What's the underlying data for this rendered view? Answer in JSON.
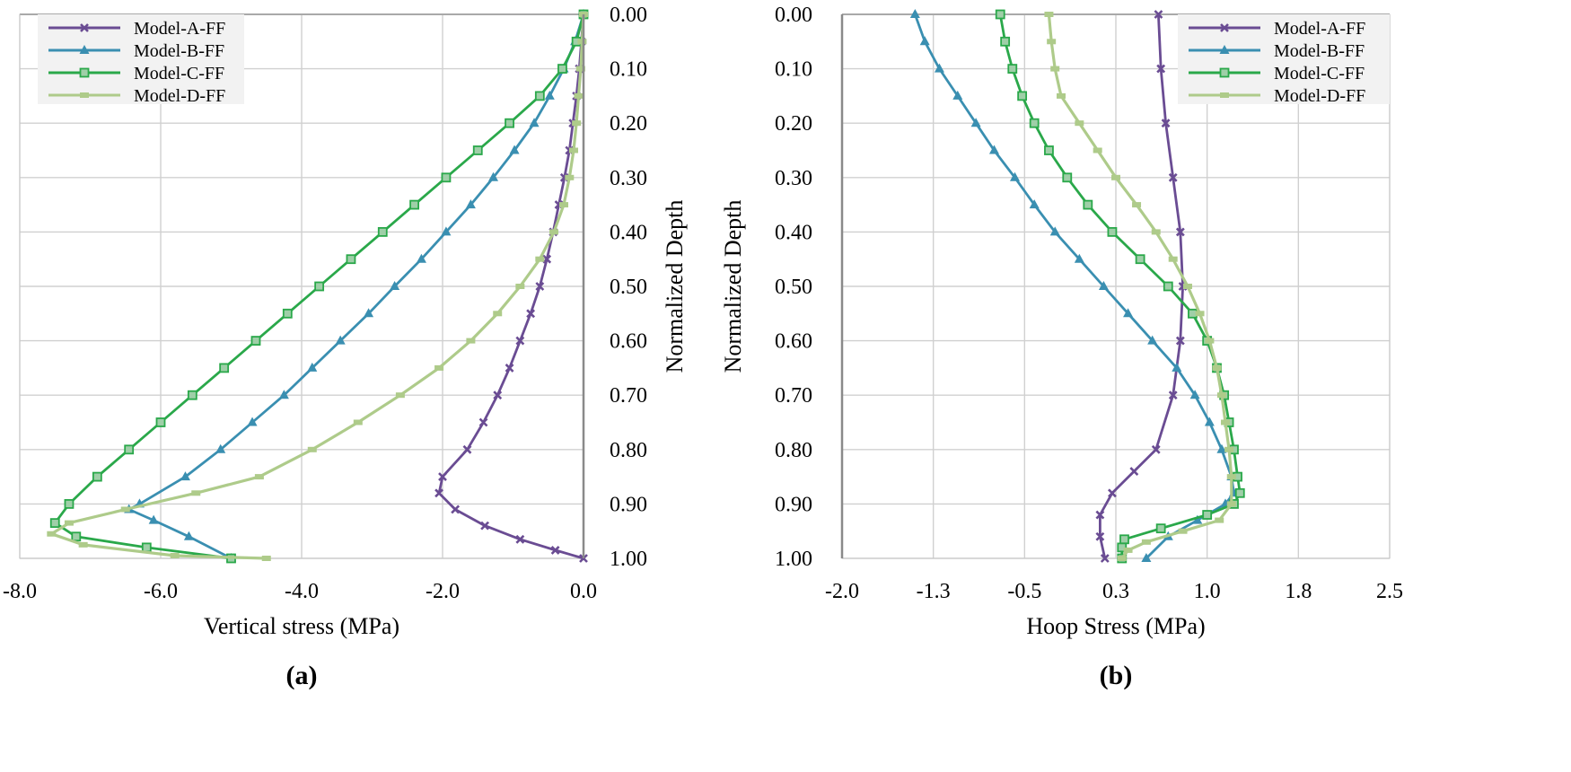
{
  "chart_data": [
    {
      "type": "line",
      "panel_label": "(a)",
      "xlabel": "Vertical stress (MPa)",
      "ylabel": "Normalized Depth",
      "xlim": [
        -8.0,
        0.0
      ],
      "ylim": [
        0.0,
        1.0
      ],
      "y_inverted": true,
      "x_ticks": [
        "-8.0",
        "-6.0",
        "-4.0",
        "-2.0",
        "0.0"
      ],
      "x_tick_values": [
        -8.0,
        -6.0,
        -4.0,
        -2.0,
        0.0
      ],
      "y_ticks": [
        "0.00",
        "0.10",
        "0.20",
        "0.30",
        "0.40",
        "0.50",
        "0.60",
        "0.70",
        "0.80",
        "0.90",
        "1.00"
      ],
      "y_tick_values": [
        0.0,
        0.1,
        0.2,
        0.3,
        0.4,
        0.5,
        0.6,
        0.7,
        0.8,
        0.9,
        1.0
      ],
      "y_axis_side": "right",
      "legend_position": "top-left",
      "grid": true,
      "series": [
        {
          "name": "Model-A-FF",
          "color": "#6a4c93",
          "marker": "x",
          "points": [
            [
              0.0,
              0.0
            ],
            [
              -0.03,
              0.05
            ],
            [
              -0.06,
              0.1
            ],
            [
              -0.1,
              0.15
            ],
            [
              -0.15,
              0.2
            ],
            [
              -0.2,
              0.25
            ],
            [
              -0.27,
              0.3
            ],
            [
              -0.35,
              0.35
            ],
            [
              -0.43,
              0.4
            ],
            [
              -0.52,
              0.45
            ],
            [
              -0.62,
              0.5
            ],
            [
              -0.75,
              0.55
            ],
            [
              -0.9,
              0.6
            ],
            [
              -1.05,
              0.65
            ],
            [
              -1.22,
              0.7
            ],
            [
              -1.42,
              0.75
            ],
            [
              -1.65,
              0.8
            ],
            [
              -2.0,
              0.85
            ],
            [
              -2.05,
              0.88
            ],
            [
              -1.82,
              0.91
            ],
            [
              -1.4,
              0.94
            ],
            [
              -0.9,
              0.965
            ],
            [
              -0.4,
              0.985
            ],
            [
              0.0,
              1.0
            ]
          ]
        },
        {
          "name": "Model-B-FF",
          "color": "#3a8fb1",
          "marker": "triangle",
          "points": [
            [
              0.0,
              0.0
            ],
            [
              -0.12,
              0.05
            ],
            [
              -0.28,
              0.1
            ],
            [
              -0.48,
              0.15
            ],
            [
              -0.7,
              0.2
            ],
            [
              -0.98,
              0.25
            ],
            [
              -1.28,
              0.3
            ],
            [
              -1.6,
              0.35
            ],
            [
              -1.95,
              0.4
            ],
            [
              -2.3,
              0.45
            ],
            [
              -2.68,
              0.5
            ],
            [
              -3.05,
              0.55
            ],
            [
              -3.45,
              0.6
            ],
            [
              -3.85,
              0.65
            ],
            [
              -4.25,
              0.7
            ],
            [
              -4.7,
              0.75
            ],
            [
              -5.15,
              0.8
            ],
            [
              -5.65,
              0.85
            ],
            [
              -6.3,
              0.9
            ],
            [
              -6.45,
              0.91
            ],
            [
              -6.1,
              0.93
            ],
            [
              -5.6,
              0.96
            ],
            [
              -5.0,
              1.0
            ]
          ]
        },
        {
          "name": "Model-C-FF",
          "color": "#2aa84a",
          "marker": "square",
          "points": [
            [
              0.0,
              0.0
            ],
            [
              -0.1,
              0.05
            ],
            [
              -0.3,
              0.1
            ],
            [
              -0.62,
              0.15
            ],
            [
              -1.05,
              0.2
            ],
            [
              -1.5,
              0.25
            ],
            [
              -1.95,
              0.3
            ],
            [
              -2.4,
              0.35
            ],
            [
              -2.85,
              0.4
            ],
            [
              -3.3,
              0.45
            ],
            [
              -3.75,
              0.5
            ],
            [
              -4.2,
              0.55
            ],
            [
              -4.65,
              0.6
            ],
            [
              -5.1,
              0.65
            ],
            [
              -5.55,
              0.7
            ],
            [
              -6.0,
              0.75
            ],
            [
              -6.45,
              0.8
            ],
            [
              -6.9,
              0.85
            ],
            [
              -7.3,
              0.9
            ],
            [
              -7.5,
              0.935
            ],
            [
              -7.2,
              0.96
            ],
            [
              -6.2,
              0.98
            ],
            [
              -5.0,
              1.0
            ]
          ]
        },
        {
          "name": "Model-D-FF",
          "color": "#aecb8a",
          "marker": "dash",
          "points": [
            [
              0.0,
              0.0
            ],
            [
              -0.02,
              0.05
            ],
            [
              -0.04,
              0.1
            ],
            [
              -0.07,
              0.15
            ],
            [
              -0.1,
              0.2
            ],
            [
              -0.14,
              0.25
            ],
            [
              -0.2,
              0.3
            ],
            [
              -0.28,
              0.35
            ],
            [
              -0.42,
              0.4
            ],
            [
              -0.62,
              0.45
            ],
            [
              -0.9,
              0.5
            ],
            [
              -1.22,
              0.55
            ],
            [
              -1.6,
              0.6
            ],
            [
              -2.05,
              0.65
            ],
            [
              -2.6,
              0.7
            ],
            [
              -3.2,
              0.75
            ],
            [
              -3.85,
              0.8
            ],
            [
              -4.6,
              0.85
            ],
            [
              -5.5,
              0.88
            ],
            [
              -6.5,
              0.91
            ],
            [
              -7.3,
              0.935
            ],
            [
              -7.55,
              0.955
            ],
            [
              -7.1,
              0.975
            ],
            [
              -5.8,
              0.995
            ],
            [
              -4.5,
              1.0
            ]
          ]
        }
      ]
    },
    {
      "type": "line",
      "panel_label": "(b)",
      "xlabel": "Hoop Stress (MPa)",
      "ylabel": "Normalized Depth",
      "xlim": [
        -2.0,
        2.5
      ],
      "ylim": [
        0.0,
        1.0
      ],
      "y_inverted": true,
      "x_ticks": [
        "-2.0",
        "-1.3",
        "-0.5",
        "0.3",
        "1.0",
        "1.8",
        "2.5"
      ],
      "x_tick_values": [
        -2.0,
        -1.25,
        -0.5,
        0.25,
        1.0,
        1.75,
        2.5
      ],
      "y_ticks": [
        "0.00",
        "0.10",
        "0.20",
        "0.30",
        "0.40",
        "0.50",
        "0.60",
        "0.70",
        "0.80",
        "0.90",
        "1.00"
      ],
      "y_tick_values": [
        0.0,
        0.1,
        0.2,
        0.3,
        0.4,
        0.5,
        0.6,
        0.7,
        0.8,
        0.9,
        1.0
      ],
      "y_axis_side": "left",
      "legend_position": "top-right",
      "grid": true,
      "series": [
        {
          "name": "Model-A-FF",
          "color": "#6a4c93",
          "marker": "x",
          "points": [
            [
              0.6,
              0.0
            ],
            [
              0.62,
              0.1
            ],
            [
              0.66,
              0.2
            ],
            [
              0.72,
              0.3
            ],
            [
              0.78,
              0.4
            ],
            [
              0.8,
              0.5
            ],
            [
              0.78,
              0.6
            ],
            [
              0.72,
              0.7
            ],
            [
              0.58,
              0.8
            ],
            [
              0.4,
              0.84
            ],
            [
              0.22,
              0.88
            ],
            [
              0.12,
              0.92
            ],
            [
              0.12,
              0.96
            ],
            [
              0.16,
              1.0
            ]
          ]
        },
        {
          "name": "Model-B-FF",
          "color": "#3a8fb1",
          "marker": "triangle",
          "points": [
            [
              -1.4,
              0.0
            ],
            [
              -1.32,
              0.05
            ],
            [
              -1.2,
              0.1
            ],
            [
              -1.05,
              0.15
            ],
            [
              -0.9,
              0.2
            ],
            [
              -0.75,
              0.25
            ],
            [
              -0.58,
              0.3
            ],
            [
              -0.42,
              0.35
            ],
            [
              -0.25,
              0.4
            ],
            [
              -0.05,
              0.45
            ],
            [
              0.15,
              0.5
            ],
            [
              0.35,
              0.55
            ],
            [
              0.55,
              0.6
            ],
            [
              0.75,
              0.65
            ],
            [
              0.9,
              0.7
            ],
            [
              1.02,
              0.75
            ],
            [
              1.12,
              0.8
            ],
            [
              1.2,
              0.85
            ],
            [
              1.22,
              0.88
            ],
            [
              1.15,
              0.9
            ],
            [
              0.92,
              0.93
            ],
            [
              0.68,
              0.96
            ],
            [
              0.5,
              1.0
            ]
          ]
        },
        {
          "name": "Model-C-FF",
          "color": "#2aa84a",
          "marker": "square",
          "points": [
            [
              -0.7,
              0.0
            ],
            [
              -0.66,
              0.05
            ],
            [
              -0.6,
              0.1
            ],
            [
              -0.52,
              0.15
            ],
            [
              -0.42,
              0.2
            ],
            [
              -0.3,
              0.25
            ],
            [
              -0.15,
              0.3
            ],
            [
              0.02,
              0.35
            ],
            [
              0.22,
              0.4
            ],
            [
              0.45,
              0.45
            ],
            [
              0.68,
              0.5
            ],
            [
              0.88,
              0.55
            ],
            [
              1.0,
              0.6
            ],
            [
              1.08,
              0.65
            ],
            [
              1.14,
              0.7
            ],
            [
              1.18,
              0.75
            ],
            [
              1.22,
              0.8
            ],
            [
              1.25,
              0.85
            ],
            [
              1.27,
              0.88
            ],
            [
              1.22,
              0.9
            ],
            [
              1.0,
              0.92
            ],
            [
              0.62,
              0.945
            ],
            [
              0.32,
              0.965
            ],
            [
              0.3,
              0.98
            ],
            [
              0.3,
              1.0
            ]
          ]
        },
        {
          "name": "Model-D-FF",
          "color": "#aecb8a",
          "marker": "dash",
          "points": [
            [
              -0.3,
              0.0
            ],
            [
              -0.28,
              0.05
            ],
            [
              -0.25,
              0.1
            ],
            [
              -0.2,
              0.15
            ],
            [
              -0.05,
              0.2
            ],
            [
              0.1,
              0.25
            ],
            [
              0.25,
              0.3
            ],
            [
              0.42,
              0.35
            ],
            [
              0.58,
              0.4
            ],
            [
              0.72,
              0.45
            ],
            [
              0.84,
              0.5
            ],
            [
              0.94,
              0.55
            ],
            [
              1.02,
              0.6
            ],
            [
              1.08,
              0.65
            ],
            [
              1.12,
              0.7
            ],
            [
              1.15,
              0.75
            ],
            [
              1.18,
              0.8
            ],
            [
              1.2,
              0.85
            ],
            [
              1.2,
              0.9
            ],
            [
              1.1,
              0.93
            ],
            [
              0.8,
              0.95
            ],
            [
              0.5,
              0.97
            ],
            [
              0.35,
              0.985
            ],
            [
              0.3,
              1.0
            ]
          ]
        }
      ]
    }
  ]
}
